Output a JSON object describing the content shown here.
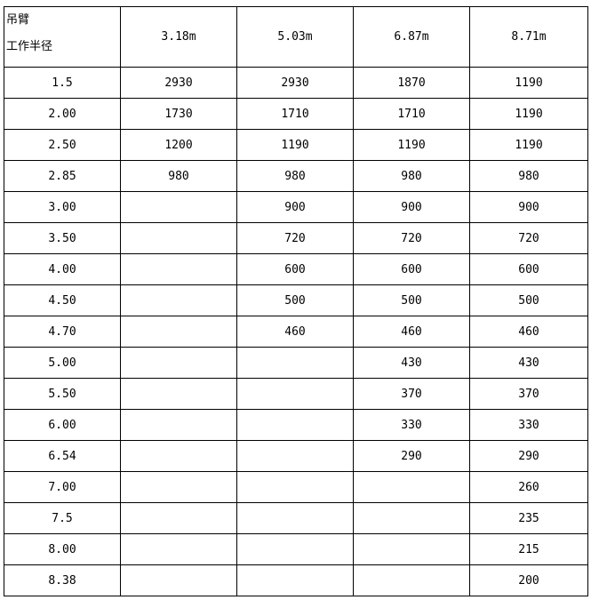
{
  "header": {
    "corner_top": "吊臂",
    "corner_bottom": "工作半径",
    "columns": [
      "3.18m",
      "5.03m",
      "6.87m",
      "8.71m"
    ]
  },
  "table": {
    "rows": [
      [
        "1.5",
        "2930",
        "2930",
        "1870",
        "1190"
      ],
      [
        "2.00",
        "1730",
        "1710",
        "1710",
        "1190"
      ],
      [
        "2.50",
        "1200",
        "1190",
        "1190",
        "1190"
      ],
      [
        "2.85",
        "980",
        "980",
        "980",
        "980"
      ],
      [
        "3.00",
        null,
        "900",
        "900",
        "900"
      ],
      [
        "3.50",
        null,
        "720",
        "720",
        "720"
      ],
      [
        "4.00",
        null,
        "600",
        "600",
        "600"
      ],
      [
        "4.50",
        null,
        "500",
        "500",
        "500"
      ],
      [
        "4.70",
        null,
        "460",
        "460",
        "460"
      ],
      [
        "5.00",
        null,
        null,
        "430",
        "430"
      ],
      [
        "5.50",
        null,
        null,
        "370",
        "370"
      ],
      [
        "6.00",
        null,
        null,
        "330",
        "330"
      ],
      [
        "6.54",
        null,
        null,
        "290",
        "290"
      ],
      [
        "7.00",
        null,
        null,
        null,
        "260"
      ],
      [
        "7.5",
        null,
        null,
        null,
        "235"
      ],
      [
        "8.00",
        null,
        null,
        null,
        "215"
      ],
      [
        "8.38",
        null,
        null,
        null,
        "200"
      ]
    ]
  }
}
